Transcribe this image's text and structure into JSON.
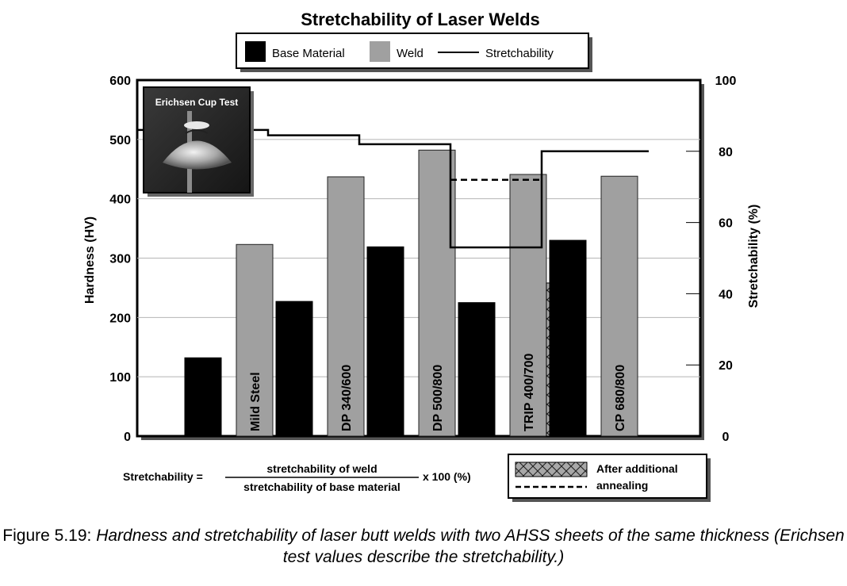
{
  "chart_data": {
    "type": "bar",
    "title": "Stretchability of Laser Welds",
    "legend": {
      "placement": "top-center",
      "entries": [
        "Base Material",
        "Weld",
        "Stretchability"
      ]
    },
    "categories": [
      "Mild Steel",
      "DP 340/600",
      "DP 500/800",
      "TRIP 400/700",
      "CP 680/800"
    ],
    "series": [
      {
        "name": "Base Material",
        "type": "bar",
        "axis": "left",
        "color": "#000000",
        "values": [
          132,
          227,
          319,
          225,
          330
        ]
      },
      {
        "name": "Weld",
        "type": "bar",
        "axis": "left",
        "color": "#a0a0a0",
        "values": [
          323,
          437,
          482,
          441,
          438
        ]
      },
      {
        "name": "After additional annealing",
        "type": "bar",
        "axis": "left",
        "pattern": "crosshatch",
        "values": [
          null,
          null,
          null,
          258,
          null
        ]
      },
      {
        "name": "Stretchability",
        "type": "step-line",
        "axis": "right",
        "color": "#000000",
        "values": [
          86,
          84.5,
          82,
          53,
          80
        ]
      },
      {
        "name": "annealing (dashed)",
        "type": "dashed-line",
        "axis": "right",
        "values": [
          null,
          null,
          null,
          72,
          null
        ]
      }
    ],
    "ylabel": "Hardness (HV)",
    "ylim": [
      0,
      600
    ],
    "yticks": [
      "0",
      "100",
      "200",
      "300",
      "400",
      "500",
      "600"
    ],
    "y2label": "Stretchability (%)",
    "y2lim": [
      0,
      100
    ],
    "y2ticks": [
      "0",
      "20",
      "40",
      "60",
      "80",
      "100"
    ],
    "grid": true,
    "inset_label": "Erichsen Cup Test",
    "formula": {
      "lhs": "Stretchability =",
      "numerator": "stretchability of weld",
      "denominator": "stretchability of base material",
      "suffix": "x 100 (%)"
    },
    "secondary_legend": {
      "line1": "After additional",
      "line2": "annealing"
    }
  },
  "caption": {
    "lead": "Figure 5.19: ",
    "text": "Hardness and stretchability of laser butt welds with two AHSS sheets of the same thickness (Erichsen test values describe the stretchability.)"
  }
}
